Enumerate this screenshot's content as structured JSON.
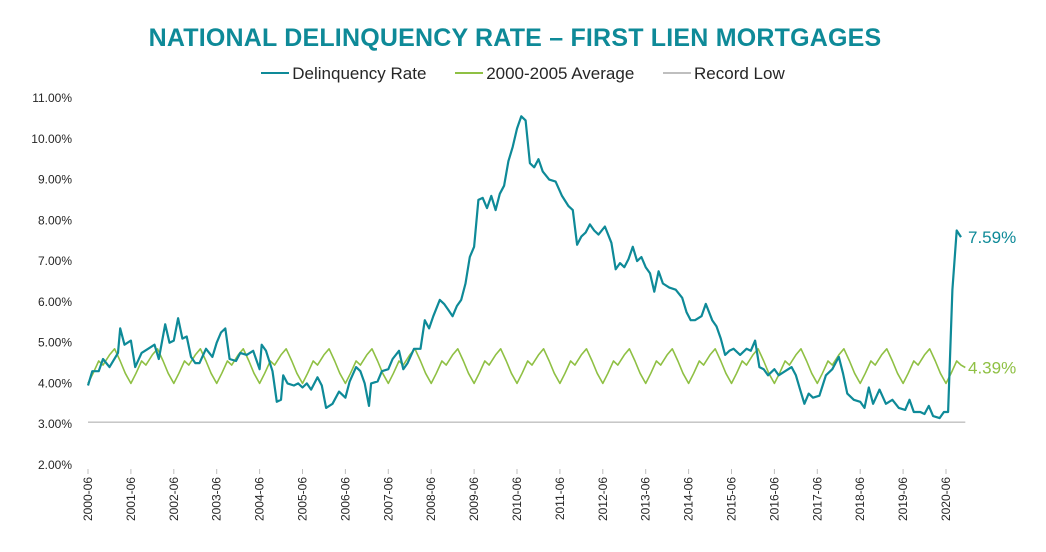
{
  "chart_data": {
    "type": "line",
    "title": "NATIONAL DELINQUENCY RATE – FIRST LIEN MORTGAGES",
    "xlabel": "",
    "ylabel": "",
    "ylim": [
      2.0,
      11.0
    ],
    "yticks": [
      "2.00%",
      "3.00%",
      "4.00%",
      "5.00%",
      "6.00%",
      "7.00%",
      "8.00%",
      "9.00%",
      "10.00%",
      "11.00%"
    ],
    "xticks": [
      "2000-06",
      "2001-06",
      "2002-06",
      "2003-06",
      "2004-06",
      "2005-06",
      "2006-06",
      "2007-06",
      "2008-06",
      "2009-06",
      "2010-06",
      "2011-06",
      "2012-06",
      "2013-06",
      "2014-06",
      "2015-06",
      "2016-06",
      "2017-06",
      "2018-06",
      "2019-06",
      "2020-06"
    ],
    "x_start": "2000-06",
    "x_end": "2020-06",
    "series": [
      {
        "name": "Delinquency Rate",
        "color": "#0e8a98",
        "end_label": "7.59%",
        "points": [
          [
            0.0,
            3.95
          ],
          [
            0.1,
            4.3
          ],
          [
            0.25,
            4.3
          ],
          [
            0.35,
            4.6
          ],
          [
            0.5,
            4.4
          ],
          [
            0.7,
            4.75
          ],
          [
            0.75,
            5.35
          ],
          [
            0.85,
            4.95
          ],
          [
            1.0,
            5.05
          ],
          [
            1.1,
            4.4
          ],
          [
            1.25,
            4.75
          ],
          [
            1.4,
            4.85
          ],
          [
            1.55,
            4.95
          ],
          [
            1.65,
            4.6
          ],
          [
            1.8,
            5.45
          ],
          [
            1.9,
            5.0
          ],
          [
            2.0,
            5.05
          ],
          [
            2.1,
            5.6
          ],
          [
            2.2,
            5.1
          ],
          [
            2.3,
            5.15
          ],
          [
            2.4,
            4.65
          ],
          [
            2.5,
            4.5
          ],
          [
            2.6,
            4.5
          ],
          [
            2.75,
            4.85
          ],
          [
            2.9,
            4.65
          ],
          [
            3.0,
            5.0
          ],
          [
            3.1,
            5.25
          ],
          [
            3.2,
            5.35
          ],
          [
            3.3,
            4.6
          ],
          [
            3.45,
            4.55
          ],
          [
            3.55,
            4.75
          ],
          [
            3.7,
            4.7
          ],
          [
            3.85,
            4.8
          ],
          [
            4.0,
            4.35
          ],
          [
            4.05,
            4.95
          ],
          [
            4.15,
            4.8
          ],
          [
            4.3,
            4.3
          ],
          [
            4.4,
            3.55
          ],
          [
            4.5,
            3.6
          ],
          [
            4.55,
            4.2
          ],
          [
            4.65,
            4.0
          ],
          [
            4.8,
            3.95
          ],
          [
            4.9,
            4.0
          ],
          [
            5.0,
            3.9
          ],
          [
            5.1,
            4.0
          ],
          [
            5.2,
            3.85
          ],
          [
            5.35,
            4.15
          ],
          [
            5.45,
            3.95
          ],
          [
            5.55,
            3.4
          ],
          [
            5.7,
            3.5
          ],
          [
            5.85,
            3.8
          ],
          [
            6.0,
            3.65
          ],
          [
            6.1,
            4.05
          ],
          [
            6.25,
            4.4
          ],
          [
            6.35,
            4.3
          ],
          [
            6.45,
            4.0
          ],
          [
            6.55,
            3.45
          ],
          [
            6.6,
            4.0
          ],
          [
            6.75,
            4.05
          ],
          [
            6.85,
            4.3
          ],
          [
            7.0,
            4.35
          ],
          [
            7.1,
            4.6
          ],
          [
            7.25,
            4.8
          ],
          [
            7.35,
            4.35
          ],
          [
            7.45,
            4.5
          ],
          [
            7.6,
            4.85
          ],
          [
            7.75,
            4.85
          ],
          [
            7.85,
            5.55
          ],
          [
            7.95,
            5.35
          ],
          [
            8.05,
            5.65
          ],
          [
            8.2,
            6.05
          ],
          [
            8.3,
            5.95
          ],
          [
            8.4,
            5.8
          ],
          [
            8.5,
            5.65
          ],
          [
            8.6,
            5.9
          ],
          [
            8.7,
            6.05
          ],
          [
            8.8,
            6.45
          ],
          [
            8.9,
            7.1
          ],
          [
            9.0,
            7.35
          ],
          [
            9.1,
            8.5
          ],
          [
            9.2,
            8.55
          ],
          [
            9.3,
            8.3
          ],
          [
            9.4,
            8.6
          ],
          [
            9.5,
            8.25
          ],
          [
            9.6,
            8.65
          ],
          [
            9.7,
            8.85
          ],
          [
            9.8,
            9.45
          ],
          [
            9.9,
            9.8
          ],
          [
            10.0,
            10.25
          ],
          [
            10.1,
            10.55
          ],
          [
            10.2,
            10.45
          ],
          [
            10.3,
            9.4
          ],
          [
            10.4,
            9.3
          ],
          [
            10.5,
            9.5
          ],
          [
            10.6,
            9.2
          ],
          [
            10.75,
            9.0
          ],
          [
            10.9,
            8.95
          ],
          [
            11.05,
            8.6
          ],
          [
            11.2,
            8.35
          ],
          [
            11.3,
            8.25
          ],
          [
            11.4,
            7.4
          ],
          [
            11.5,
            7.6
          ],
          [
            11.6,
            7.7
          ],
          [
            11.7,
            7.9
          ],
          [
            11.8,
            7.75
          ],
          [
            11.9,
            7.65
          ],
          [
            12.05,
            7.85
          ],
          [
            12.2,
            7.45
          ],
          [
            12.3,
            6.8
          ],
          [
            12.4,
            6.95
          ],
          [
            12.5,
            6.85
          ],
          [
            12.6,
            7.05
          ],
          [
            12.7,
            7.35
          ],
          [
            12.8,
            7.0
          ],
          [
            12.9,
            7.1
          ],
          [
            13.0,
            6.85
          ],
          [
            13.1,
            6.7
          ],
          [
            13.2,
            6.25
          ],
          [
            13.3,
            6.75
          ],
          [
            13.4,
            6.45
          ],
          [
            13.55,
            6.35
          ],
          [
            13.7,
            6.3
          ],
          [
            13.85,
            6.1
          ],
          [
            13.95,
            5.75
          ],
          [
            14.05,
            5.55
          ],
          [
            14.15,
            5.55
          ],
          [
            14.3,
            5.65
          ],
          [
            14.4,
            5.95
          ],
          [
            14.55,
            5.55
          ],
          [
            14.65,
            5.4
          ],
          [
            14.75,
            5.1
          ],
          [
            14.85,
            4.7
          ],
          [
            14.95,
            4.8
          ],
          [
            15.05,
            4.85
          ],
          [
            15.2,
            4.7
          ],
          [
            15.35,
            4.85
          ],
          [
            15.45,
            4.8
          ],
          [
            15.55,
            5.05
          ],
          [
            15.65,
            4.4
          ],
          [
            15.75,
            4.35
          ],
          [
            15.85,
            4.2
          ],
          [
            16.0,
            4.35
          ],
          [
            16.1,
            4.2
          ],
          [
            16.25,
            4.3
          ],
          [
            16.4,
            4.4
          ],
          [
            16.5,
            4.2
          ],
          [
            16.6,
            3.85
          ],
          [
            16.7,
            3.5
          ],
          [
            16.8,
            3.75
          ],
          [
            16.9,
            3.65
          ],
          [
            17.05,
            3.7
          ],
          [
            17.2,
            4.2
          ],
          [
            17.35,
            4.35
          ],
          [
            17.5,
            4.65
          ],
          [
            17.6,
            4.25
          ],
          [
            17.7,
            3.75
          ],
          [
            17.85,
            3.6
          ],
          [
            18.0,
            3.55
          ],
          [
            18.1,
            3.4
          ],
          [
            18.2,
            3.9
          ],
          [
            18.3,
            3.5
          ],
          [
            18.45,
            3.85
          ],
          [
            18.6,
            3.5
          ],
          [
            18.75,
            3.6
          ],
          [
            18.9,
            3.4
          ],
          [
            19.05,
            3.35
          ],
          [
            19.15,
            3.6
          ],
          [
            19.25,
            3.3
          ],
          [
            19.4,
            3.3
          ],
          [
            19.5,
            3.25
          ],
          [
            19.6,
            3.45
          ],
          [
            19.7,
            3.2
          ],
          [
            19.85,
            3.15
          ],
          [
            19.95,
            3.3
          ],
          [
            20.05,
            3.3
          ],
          [
            20.15,
            6.3
          ],
          [
            20.25,
            7.75
          ],
          [
            20.35,
            7.59
          ]
        ]
      },
      {
        "name": "2000-2005 Average",
        "color": "#8fc044",
        "end_label": "4.39%",
        "cycle_points": [
          [
            0.0,
            4.0
          ],
          [
            0.12,
            4.25
          ],
          [
            0.25,
            4.55
          ],
          [
            0.35,
            4.45
          ],
          [
            0.5,
            4.7
          ],
          [
            0.62,
            4.85
          ],
          [
            0.75,
            4.55
          ],
          [
            0.87,
            4.25
          ],
          [
            1.0,
            4.0
          ]
        ],
        "cycle_length_years": 1.0,
        "x_range": [
          0.0,
          20.45
        ]
      },
      {
        "name": "Record Low",
        "color": "#bfbfbf",
        "value": 3.05
      }
    ]
  }
}
